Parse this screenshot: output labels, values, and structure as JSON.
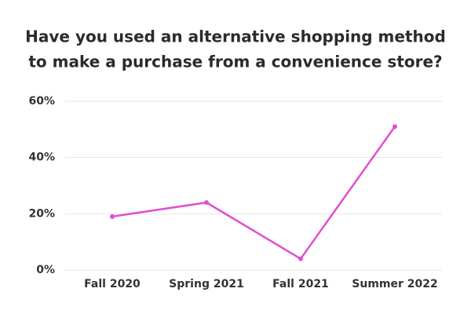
{
  "chart_data": {
    "type": "line",
    "title": [
      "Have you used an alternative shopping method",
      "to make a purchase from a convenience store?"
    ],
    "categories": [
      "Fall 2020",
      "Spring 2021",
      "Fall 2021",
      "Summer 2022"
    ],
    "values": [
      19,
      24,
      4,
      51
    ],
    "color": "#e04fd0",
    "ylim": [
      0,
      60
    ],
    "yticks": [
      {
        "value": 0,
        "label": "0%"
      },
      {
        "value": 20,
        "label": "20%"
      },
      {
        "value": 40,
        "label": "40%"
      },
      {
        "value": 60,
        "label": "60%"
      }
    ],
    "grid": true
  }
}
